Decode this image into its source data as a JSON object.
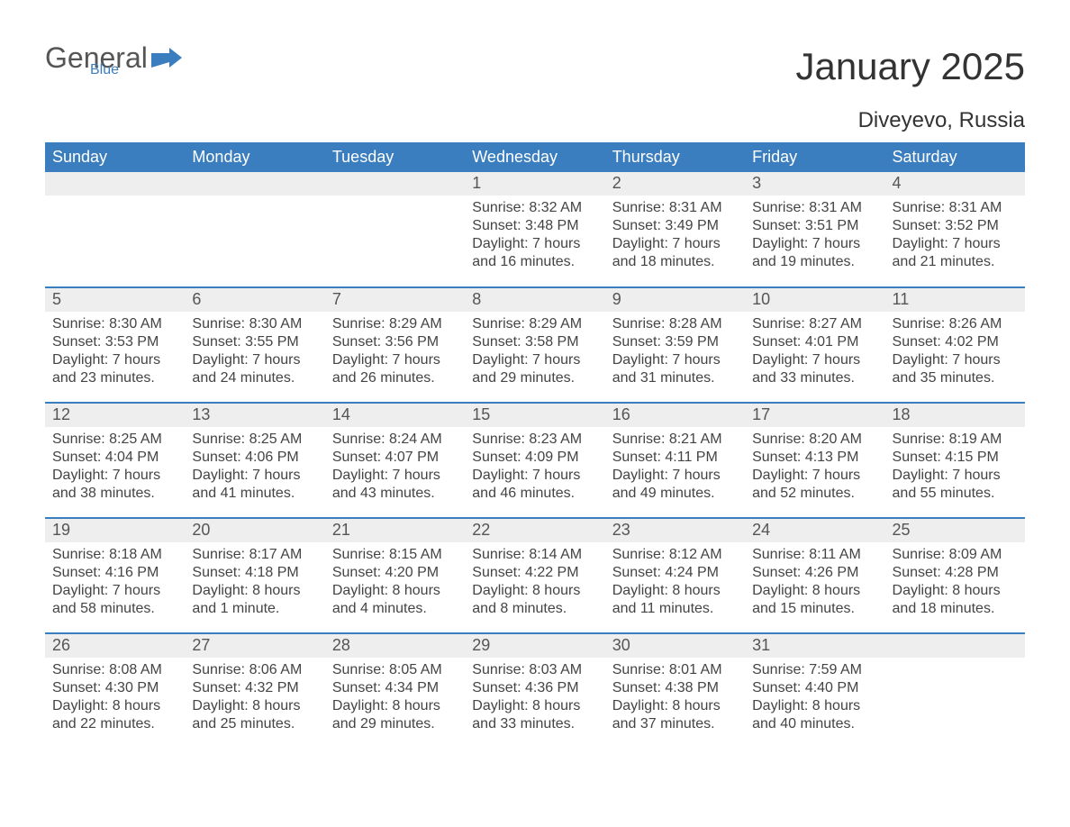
{
  "logo": {
    "word1": "General",
    "word2": "Blue"
  },
  "title": "January 2025",
  "location": "Diveyevo, Russia",
  "columns": [
    "Sunday",
    "Monday",
    "Tuesday",
    "Wednesday",
    "Thursday",
    "Friday",
    "Saturday"
  ],
  "colors": {
    "header_bg": "#3b7ebf",
    "header_text": "#ffffff",
    "row_border": "#3b7ebf",
    "daynum_bg": "#eeeeee",
    "text": "#444444",
    "logo_gray": "#555555",
    "logo_blue": "#3b7ebf",
    "background": "#ffffff"
  },
  "weeks": [
    [
      {
        "day": "",
        "sunrise": "",
        "sunset": "",
        "daylight1": "",
        "daylight2": ""
      },
      {
        "day": "",
        "sunrise": "",
        "sunset": "",
        "daylight1": "",
        "daylight2": ""
      },
      {
        "day": "",
        "sunrise": "",
        "sunset": "",
        "daylight1": "",
        "daylight2": ""
      },
      {
        "day": "1",
        "sunrise": "Sunrise: 8:32 AM",
        "sunset": "Sunset: 3:48 PM",
        "daylight1": "Daylight: 7 hours",
        "daylight2": "and 16 minutes."
      },
      {
        "day": "2",
        "sunrise": "Sunrise: 8:31 AM",
        "sunset": "Sunset: 3:49 PM",
        "daylight1": "Daylight: 7 hours",
        "daylight2": "and 18 minutes."
      },
      {
        "day": "3",
        "sunrise": "Sunrise: 8:31 AM",
        "sunset": "Sunset: 3:51 PM",
        "daylight1": "Daylight: 7 hours",
        "daylight2": "and 19 minutes."
      },
      {
        "day": "4",
        "sunrise": "Sunrise: 8:31 AM",
        "sunset": "Sunset: 3:52 PM",
        "daylight1": "Daylight: 7 hours",
        "daylight2": "and 21 minutes."
      }
    ],
    [
      {
        "day": "5",
        "sunrise": "Sunrise: 8:30 AM",
        "sunset": "Sunset: 3:53 PM",
        "daylight1": "Daylight: 7 hours",
        "daylight2": "and 23 minutes."
      },
      {
        "day": "6",
        "sunrise": "Sunrise: 8:30 AM",
        "sunset": "Sunset: 3:55 PM",
        "daylight1": "Daylight: 7 hours",
        "daylight2": "and 24 minutes."
      },
      {
        "day": "7",
        "sunrise": "Sunrise: 8:29 AM",
        "sunset": "Sunset: 3:56 PM",
        "daylight1": "Daylight: 7 hours",
        "daylight2": "and 26 minutes."
      },
      {
        "day": "8",
        "sunrise": "Sunrise: 8:29 AM",
        "sunset": "Sunset: 3:58 PM",
        "daylight1": "Daylight: 7 hours",
        "daylight2": "and 29 minutes."
      },
      {
        "day": "9",
        "sunrise": "Sunrise: 8:28 AM",
        "sunset": "Sunset: 3:59 PM",
        "daylight1": "Daylight: 7 hours",
        "daylight2": "and 31 minutes."
      },
      {
        "day": "10",
        "sunrise": "Sunrise: 8:27 AM",
        "sunset": "Sunset: 4:01 PM",
        "daylight1": "Daylight: 7 hours",
        "daylight2": "and 33 minutes."
      },
      {
        "day": "11",
        "sunrise": "Sunrise: 8:26 AM",
        "sunset": "Sunset: 4:02 PM",
        "daylight1": "Daylight: 7 hours",
        "daylight2": "and 35 minutes."
      }
    ],
    [
      {
        "day": "12",
        "sunrise": "Sunrise: 8:25 AM",
        "sunset": "Sunset: 4:04 PM",
        "daylight1": "Daylight: 7 hours",
        "daylight2": "and 38 minutes."
      },
      {
        "day": "13",
        "sunrise": "Sunrise: 8:25 AM",
        "sunset": "Sunset: 4:06 PM",
        "daylight1": "Daylight: 7 hours",
        "daylight2": "and 41 minutes."
      },
      {
        "day": "14",
        "sunrise": "Sunrise: 8:24 AM",
        "sunset": "Sunset: 4:07 PM",
        "daylight1": "Daylight: 7 hours",
        "daylight2": "and 43 minutes."
      },
      {
        "day": "15",
        "sunrise": "Sunrise: 8:23 AM",
        "sunset": "Sunset: 4:09 PM",
        "daylight1": "Daylight: 7 hours",
        "daylight2": "and 46 minutes."
      },
      {
        "day": "16",
        "sunrise": "Sunrise: 8:21 AM",
        "sunset": "Sunset: 4:11 PM",
        "daylight1": "Daylight: 7 hours",
        "daylight2": "and 49 minutes."
      },
      {
        "day": "17",
        "sunrise": "Sunrise: 8:20 AM",
        "sunset": "Sunset: 4:13 PM",
        "daylight1": "Daylight: 7 hours",
        "daylight2": "and 52 minutes."
      },
      {
        "day": "18",
        "sunrise": "Sunrise: 8:19 AM",
        "sunset": "Sunset: 4:15 PM",
        "daylight1": "Daylight: 7 hours",
        "daylight2": "and 55 minutes."
      }
    ],
    [
      {
        "day": "19",
        "sunrise": "Sunrise: 8:18 AM",
        "sunset": "Sunset: 4:16 PM",
        "daylight1": "Daylight: 7 hours",
        "daylight2": "and 58 minutes."
      },
      {
        "day": "20",
        "sunrise": "Sunrise: 8:17 AM",
        "sunset": "Sunset: 4:18 PM",
        "daylight1": "Daylight: 8 hours",
        "daylight2": "and 1 minute."
      },
      {
        "day": "21",
        "sunrise": "Sunrise: 8:15 AM",
        "sunset": "Sunset: 4:20 PM",
        "daylight1": "Daylight: 8 hours",
        "daylight2": "and 4 minutes."
      },
      {
        "day": "22",
        "sunrise": "Sunrise: 8:14 AM",
        "sunset": "Sunset: 4:22 PM",
        "daylight1": "Daylight: 8 hours",
        "daylight2": "and 8 minutes."
      },
      {
        "day": "23",
        "sunrise": "Sunrise: 8:12 AM",
        "sunset": "Sunset: 4:24 PM",
        "daylight1": "Daylight: 8 hours",
        "daylight2": "and 11 minutes."
      },
      {
        "day": "24",
        "sunrise": "Sunrise: 8:11 AM",
        "sunset": "Sunset: 4:26 PM",
        "daylight1": "Daylight: 8 hours",
        "daylight2": "and 15 minutes."
      },
      {
        "day": "25",
        "sunrise": "Sunrise: 8:09 AM",
        "sunset": "Sunset: 4:28 PM",
        "daylight1": "Daylight: 8 hours",
        "daylight2": "and 18 minutes."
      }
    ],
    [
      {
        "day": "26",
        "sunrise": "Sunrise: 8:08 AM",
        "sunset": "Sunset: 4:30 PM",
        "daylight1": "Daylight: 8 hours",
        "daylight2": "and 22 minutes."
      },
      {
        "day": "27",
        "sunrise": "Sunrise: 8:06 AM",
        "sunset": "Sunset: 4:32 PM",
        "daylight1": "Daylight: 8 hours",
        "daylight2": "and 25 minutes."
      },
      {
        "day": "28",
        "sunrise": "Sunrise: 8:05 AM",
        "sunset": "Sunset: 4:34 PM",
        "daylight1": "Daylight: 8 hours",
        "daylight2": "and 29 minutes."
      },
      {
        "day": "29",
        "sunrise": "Sunrise: 8:03 AM",
        "sunset": "Sunset: 4:36 PM",
        "daylight1": "Daylight: 8 hours",
        "daylight2": "and 33 minutes."
      },
      {
        "day": "30",
        "sunrise": "Sunrise: 8:01 AM",
        "sunset": "Sunset: 4:38 PM",
        "daylight1": "Daylight: 8 hours",
        "daylight2": "and 37 minutes."
      },
      {
        "day": "31",
        "sunrise": "Sunrise: 7:59 AM",
        "sunset": "Sunset: 4:40 PM",
        "daylight1": "Daylight: 8 hours",
        "daylight2": "and 40 minutes."
      },
      {
        "day": "",
        "sunrise": "",
        "sunset": "",
        "daylight1": "",
        "daylight2": ""
      }
    ]
  ]
}
